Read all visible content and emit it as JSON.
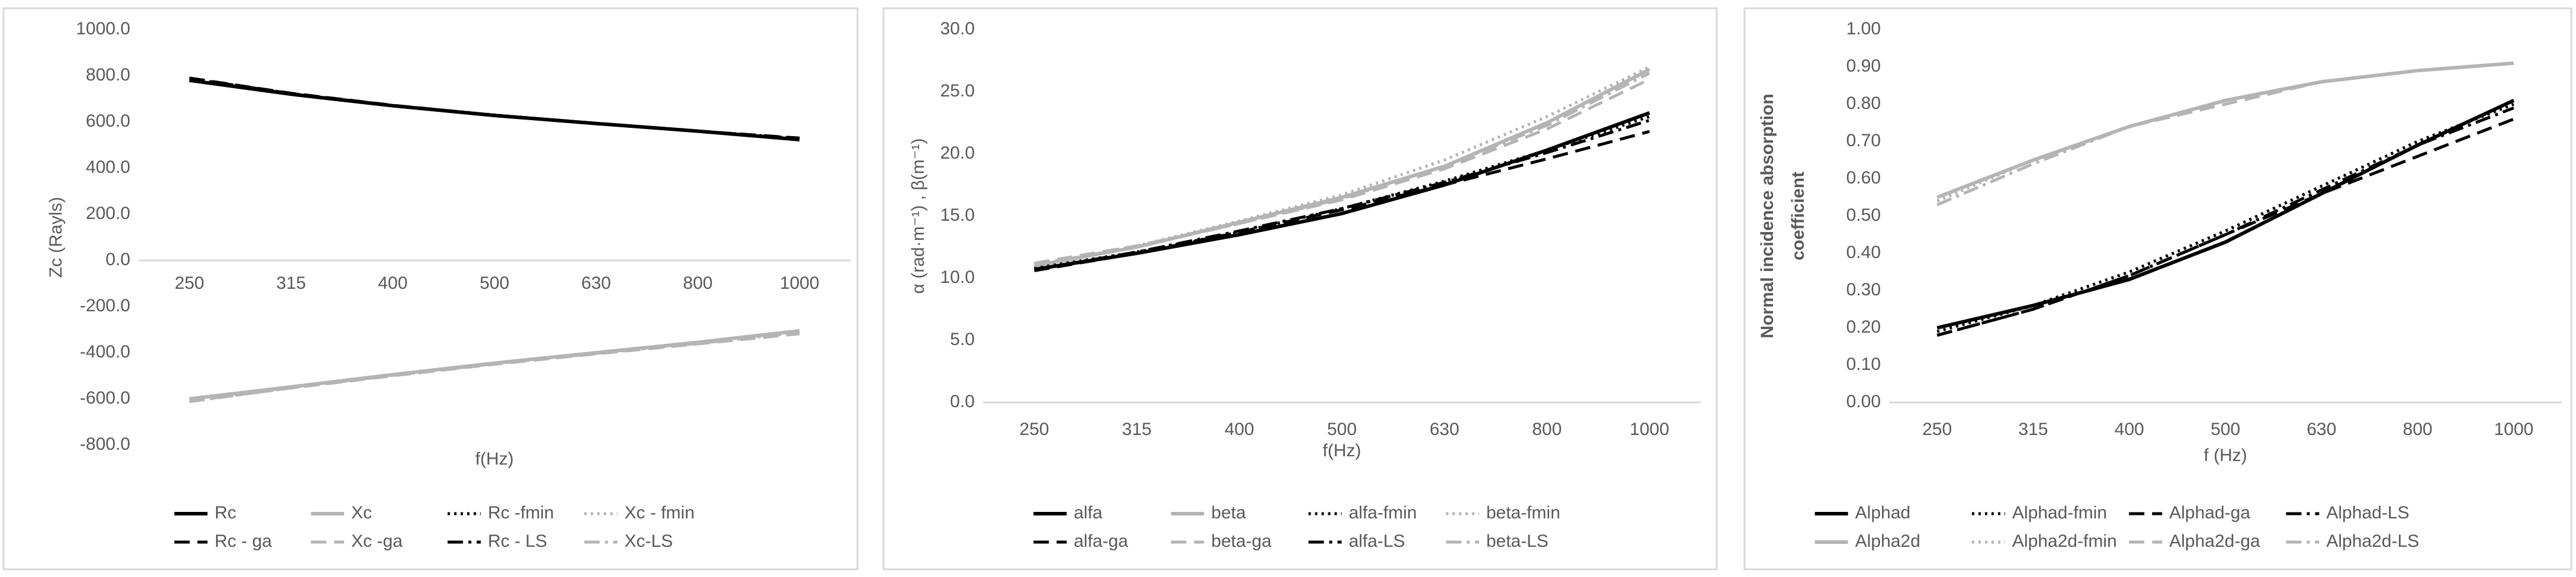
{
  "chart_data": [
    {
      "type": "line",
      "ylabel": "Zc (Rayls)",
      "xlabel": "f(Hz)",
      "categories": [
        "250",
        "315",
        "400",
        "500",
        "630",
        "800",
        "1000"
      ],
      "ylim": [
        -800,
        1000
      ],
      "yticks": [
        {
          "value": -800,
          "label": "-800.0"
        },
        {
          "value": -600,
          "label": "-600.0"
        },
        {
          "value": -400,
          "label": "-400.0"
        },
        {
          "value": -200,
          "label": "-200.0"
        },
        {
          "value": 0,
          "label": "0.0"
        },
        {
          "value": 200,
          "label": "200.0"
        },
        {
          "value": 400,
          "label": "400.0"
        },
        {
          "value": 600,
          "label": "600.0"
        },
        {
          "value": 800,
          "label": "800.0"
        },
        {
          "value": 1000,
          "label": "1000.0"
        }
      ],
      "grid": false,
      "legend": "bottom",
      "series": [
        {
          "name": "Rc",
          "color": "#000000",
          "dash": "solid",
          "values": [
            780,
            720,
            670,
            628,
            593,
            560,
            523
          ]
        },
        {
          "name": "Xc",
          "color": "#b4b4b4",
          "dash": "solid",
          "values": [
            -600,
            -548,
            -495,
            -445,
            -400,
            -355,
            -305
          ]
        },
        {
          "name": "Rc -fmin",
          "color": "#000000",
          "dash": "dot",
          "values": [
            785,
            722,
            671,
            630,
            594,
            561,
            528
          ]
        },
        {
          "name": "Xc - fmin",
          "color": "#b4b4b4",
          "dash": "dot",
          "values": [
            -603,
            -550,
            -496,
            -446,
            -401,
            -356,
            -308
          ]
        },
        {
          "name": "Rc - ga",
          "color": "#000000",
          "dash": "dash",
          "values": [
            790,
            724,
            672,
            629,
            594,
            560,
            530
          ]
        },
        {
          "name": "Xc -ga",
          "color": "#b4b4b4",
          "dash": "dash",
          "values": [
            -610,
            -553,
            -500,
            -450,
            -405,
            -362,
            -318
          ]
        },
        {
          "name": "Rc - LS",
          "color": "#000000",
          "dash": "dashdot",
          "values": [
            788,
            723,
            671,
            629,
            593,
            560,
            526
          ]
        },
        {
          "name": "Xc-LS",
          "color": "#b4b4b4",
          "dash": "dashdot",
          "values": [
            -612,
            -552,
            -498,
            -448,
            -403,
            -360,
            -312
          ]
        }
      ]
    },
    {
      "type": "line",
      "ylabel": "α (rad·m⁻¹) , β(m⁻¹)",
      "xlabel": "f(Hz)",
      "categories": [
        "250",
        "315",
        "400",
        "500",
        "630",
        "800",
        "1000"
      ],
      "ylim": [
        0,
        30
      ],
      "yticks": [
        {
          "value": 0,
          "label": "0.0"
        },
        {
          "value": 5,
          "label": "5.0"
        },
        {
          "value": 10,
          "label": "10.0"
        },
        {
          "value": 15,
          "label": "15.0"
        },
        {
          "value": 20,
          "label": "20.0"
        },
        {
          "value": 25,
          "label": "25.0"
        },
        {
          "value": 30,
          "label": "30.0"
        }
      ],
      "grid": false,
      "legend": "bottom",
      "series": [
        {
          "name": "alfa",
          "color": "#000000",
          "dash": "solid",
          "values": [
            10.7,
            12.0,
            13.5,
            15.2,
            17.5,
            20.3,
            23.3
          ]
        },
        {
          "name": "beta",
          "color": "#b4b4b4",
          "dash": "solid",
          "values": [
            11.0,
            12.5,
            14.5,
            16.5,
            19.0,
            22.5,
            26.8
          ]
        },
        {
          "name": "alfa-fmin",
          "color": "#000000",
          "dash": "dot",
          "values": [
            10.8,
            12.1,
            13.7,
            15.6,
            17.8,
            20.3,
            23.0
          ]
        },
        {
          "name": "beta-fmin",
          "color": "#b4b4b4",
          "dash": "dot",
          "values": [
            11.0,
            12.6,
            14.6,
            16.7,
            19.5,
            23.0,
            27.0
          ]
        },
        {
          "name": "alfa-ga",
          "color": "#000000",
          "dash": "dash",
          "values": [
            10.6,
            12.0,
            13.7,
            15.5,
            17.5,
            19.6,
            21.8
          ]
        },
        {
          "name": "beta-ga",
          "color": "#b4b4b4",
          "dash": "dash",
          "values": [
            11.2,
            12.6,
            14.4,
            16.3,
            18.8,
            22.0,
            26.0
          ]
        },
        {
          "name": "alfa-LS",
          "color": "#000000",
          "dash": "dashdot",
          "values": [
            10.7,
            12.1,
            13.8,
            15.6,
            17.7,
            20.1,
            22.7
          ]
        },
        {
          "name": "beta-LS",
          "color": "#b4b4b4",
          "dash": "dashdot",
          "values": [
            11.1,
            12.5,
            14.4,
            16.4,
            19.0,
            22.3,
            26.5
          ]
        }
      ]
    },
    {
      "type": "line",
      "ylabel": [
        "Normal incidence absorption",
        "coefficient"
      ],
      "xlabel": "f (Hz)",
      "categories": [
        "250",
        "315",
        "400",
        "500",
        "630",
        "800",
        "1000"
      ],
      "ylim": [
        0,
        1
      ],
      "yticks": [
        {
          "value": 0,
          "label": "0.00"
        },
        {
          "value": 0.1,
          "label": "0.10"
        },
        {
          "value": 0.2,
          "label": "0.20"
        },
        {
          "value": 0.3,
          "label": "0.30"
        },
        {
          "value": 0.4,
          "label": "0.40"
        },
        {
          "value": 0.5,
          "label": "0.50"
        },
        {
          "value": 0.6,
          "label": "0.60"
        },
        {
          "value": 0.7,
          "label": "0.70"
        },
        {
          "value": 0.8,
          "label": "0.80"
        },
        {
          "value": 0.9,
          "label": "0.90"
        },
        {
          "value": 1,
          "label": "1.00"
        }
      ],
      "grid": false,
      "legend": "bottom",
      "series": [
        {
          "name": "Alphad",
          "color": "#000000",
          "dash": "solid",
          "values": [
            0.2,
            0.26,
            0.33,
            0.43,
            0.56,
            0.69,
            0.81
          ]
        },
        {
          "name": "Alphad-fmin",
          "color": "#000000",
          "dash": "dot",
          "values": [
            0.19,
            0.26,
            0.35,
            0.46,
            0.58,
            0.7,
            0.8
          ]
        },
        {
          "name": "Alphad-ga",
          "color": "#000000",
          "dash": "dash",
          "values": [
            0.18,
            0.25,
            0.34,
            0.45,
            0.56,
            0.66,
            0.76
          ]
        },
        {
          "name": "Alphad-LS",
          "color": "#000000",
          "dash": "dashdot",
          "values": [
            0.18,
            0.25,
            0.34,
            0.45,
            0.57,
            0.69,
            0.79
          ]
        },
        {
          "name": "Alpha2d",
          "color": "#b4b4b4",
          "dash": "solid",
          "values": [
            0.55,
            0.65,
            0.74,
            0.81,
            0.86,
            0.89,
            0.91
          ]
        },
        {
          "name": "Alpha2d-fmin",
          "color": "#b4b4b4",
          "dash": "dot",
          "values": [
            0.54,
            0.65,
            0.74,
            0.81,
            0.86,
            0.89,
            0.91
          ]
        },
        {
          "name": "Alpha2d-ga",
          "color": "#b4b4b4",
          "dash": "dash",
          "values": [
            0.55,
            0.65,
            0.74,
            0.8,
            0.86,
            0.89,
            0.91
          ]
        },
        {
          "name": "Alpha2d-LS",
          "color": "#b4b4b4",
          "dash": "dashdot",
          "values": [
            0.53,
            0.64,
            0.74,
            0.81,
            0.86,
            0.89,
            0.91
          ]
        }
      ]
    }
  ]
}
